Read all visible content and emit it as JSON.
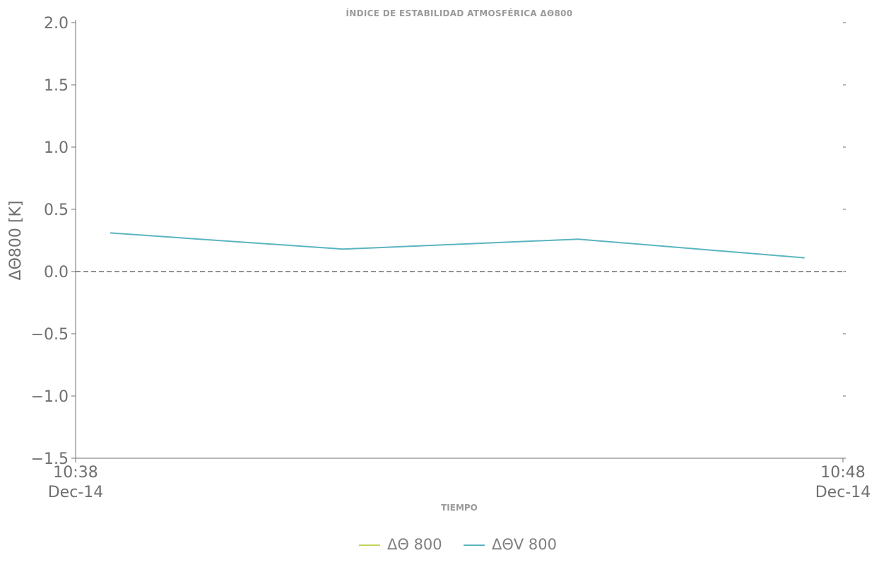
{
  "chart_data": {
    "type": "line",
    "title": "ÍNDICE DE ESTABILIDAD ATMOSFÉRICA ΔΘ800",
    "xlabel": "TIEMPO",
    "ylabel": "ΔΘ800 [K]",
    "ylim": [
      -1.5,
      2.0
    ],
    "xlim": [
      "10:38",
      "10:48"
    ],
    "x_unit": "minutes",
    "y_ticks": [
      {
        "value": 2.0,
        "label": "2.0"
      },
      {
        "value": 1.5,
        "label": "1.5"
      },
      {
        "value": 1.0,
        "label": "1.0"
      },
      {
        "value": 0.5,
        "label": "0.5"
      },
      {
        "value": 0.0,
        "label": "0.0"
      },
      {
        "value": -0.5,
        "label": "−0.5"
      },
      {
        "value": -1.0,
        "label": "−1.0"
      },
      {
        "value": -1.5,
        "label": "−1.5"
      }
    ],
    "x_ticks": [
      {
        "value": "10:38",
        "time": "10:38",
        "date": "Dec-14"
      },
      {
        "value": "10:48",
        "time": "10:48",
        "date": "Dec-14"
      }
    ],
    "reference_line": {
      "y": 0.0,
      "style": "dashed",
      "color": "#6f6f6f"
    },
    "series": [
      {
        "name": "ΔΘ 800",
        "color": "#c5d35a",
        "x": [],
        "y": []
      },
      {
        "name": "ΔΘV 800",
        "color": "#5ab5c0",
        "x": [
          "10:38:27",
          "10:41:29",
          "10:44:33",
          "10:47:30"
        ],
        "y": [
          0.31,
          0.18,
          0.26,
          0.11
        ]
      }
    ],
    "legend": {
      "placement": "bottom-center"
    },
    "grid": false
  }
}
